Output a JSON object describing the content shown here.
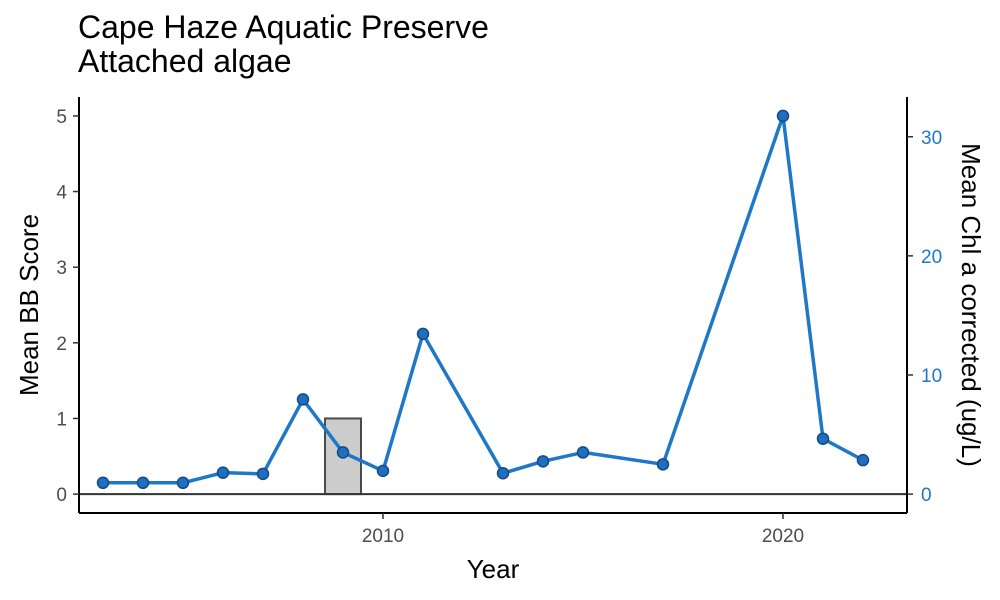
{
  "colors": {
    "line": "#1f77c8",
    "point_fill": "#1f6fc0",
    "point_stroke": "#154a86",
    "bar_fill": "#cccccc",
    "bar_stroke": "#4a4a4a",
    "axis": "#000000",
    "right_axis_text": "#1f77c8"
  },
  "chart_data": {
    "type": "line",
    "title": "Cape Haze Aquatic Preserve",
    "subtitle": "Attached algae",
    "xlabel": "Year",
    "ylabel": "Mean BB Score",
    "y2label": "Mean Chl a corrected (ug/L)",
    "xlim": [
      2002.4,
      2023.1
    ],
    "ylim": [
      -0.25,
      5.25
    ],
    "x_ticks": [
      2010,
      2020
    ],
    "y_ticks": [
      0,
      1,
      2,
      3,
      4,
      5
    ],
    "y2_ticks": [
      0,
      10,
      20,
      30
    ],
    "y2_per_y": 6.35,
    "grid": false,
    "bars": {
      "name": "Mean BB Score",
      "x": [
        2009
      ],
      "values": [
        1.0
      ],
      "width": 0.9
    },
    "series": [
      {
        "name": "Mean Chl a corrected (ug/L)",
        "axis": "right",
        "x": [
          2003,
          2004,
          2005,
          2006,
          2007,
          2008,
          2009,
          2010,
          2011,
          2013,
          2014,
          2015,
          2017,
          2020,
          2021,
          2022
        ],
        "values": [
          0.95,
          0.95,
          0.95,
          1.8,
          1.7,
          7.95,
          3.5,
          1.95,
          13.45,
          1.75,
          2.75,
          3.5,
          2.5,
          31.75,
          4.65,
          2.85
        ]
      }
    ]
  }
}
